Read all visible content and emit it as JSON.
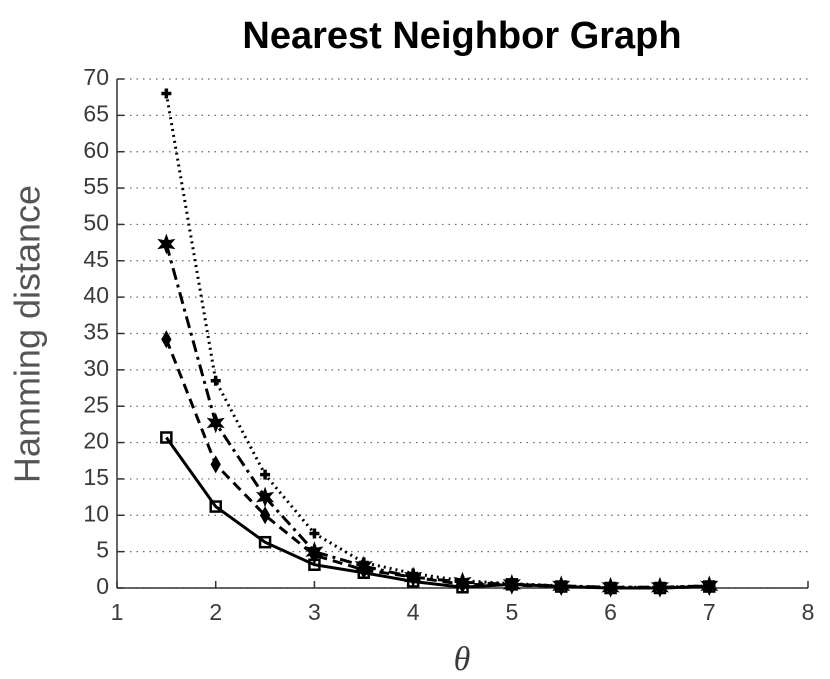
{
  "chart_data": {
    "type": "line",
    "title": "Nearest Neighbor Graph",
    "x_label": "θ",
    "y_label": "Hamming distance",
    "x": [
      1.5,
      2,
      2.5,
      3,
      3.5,
      4,
      4.5,
      5,
      5.5,
      6,
      6.5,
      7
    ],
    "series": [
      {
        "color": "#000000",
        "dash": "solid",
        "marker": "square",
        "values": [
          20.7,
          11.2,
          6.3,
          3.2,
          2.1,
          0.9,
          0.1,
          0.5,
          0.2,
          0.0,
          0.0,
          0.2
        ]
      },
      {
        "color": "#000000",
        "dash": "dashed",
        "marker": "diamond",
        "values": [
          34.2,
          17.0,
          10.0,
          4.5,
          2.5,
          1.5,
          0.5,
          0.4,
          0.2,
          0.0,
          0.0,
          0.2
        ]
      },
      {
        "color": "#000000",
        "dash": "dashdot",
        "marker": "star",
        "values": [
          47.3,
          22.7,
          12.5,
          5.0,
          3.0,
          1.5,
          0.8,
          0.5,
          0.3,
          0.1,
          0.1,
          0.3
        ]
      },
      {
        "color": "#000000",
        "dash": "dotted",
        "marker": "plus",
        "values": [
          68.0,
          28.5,
          15.6,
          7.5,
          3.5,
          2.0,
          1.0,
          0.6,
          0.3,
          0.1,
          0.1,
          0.3
        ]
      }
    ],
    "xlim": [
      1,
      8
    ],
    "xticks": [
      1,
      2,
      3,
      4,
      5,
      6,
      7,
      8
    ],
    "ylim": [
      0,
      70
    ],
    "yticks": [
      0,
      5,
      10,
      15,
      20,
      25,
      30,
      35,
      40,
      45,
      50,
      55,
      60,
      65,
      70
    ],
    "grid": "y"
  }
}
